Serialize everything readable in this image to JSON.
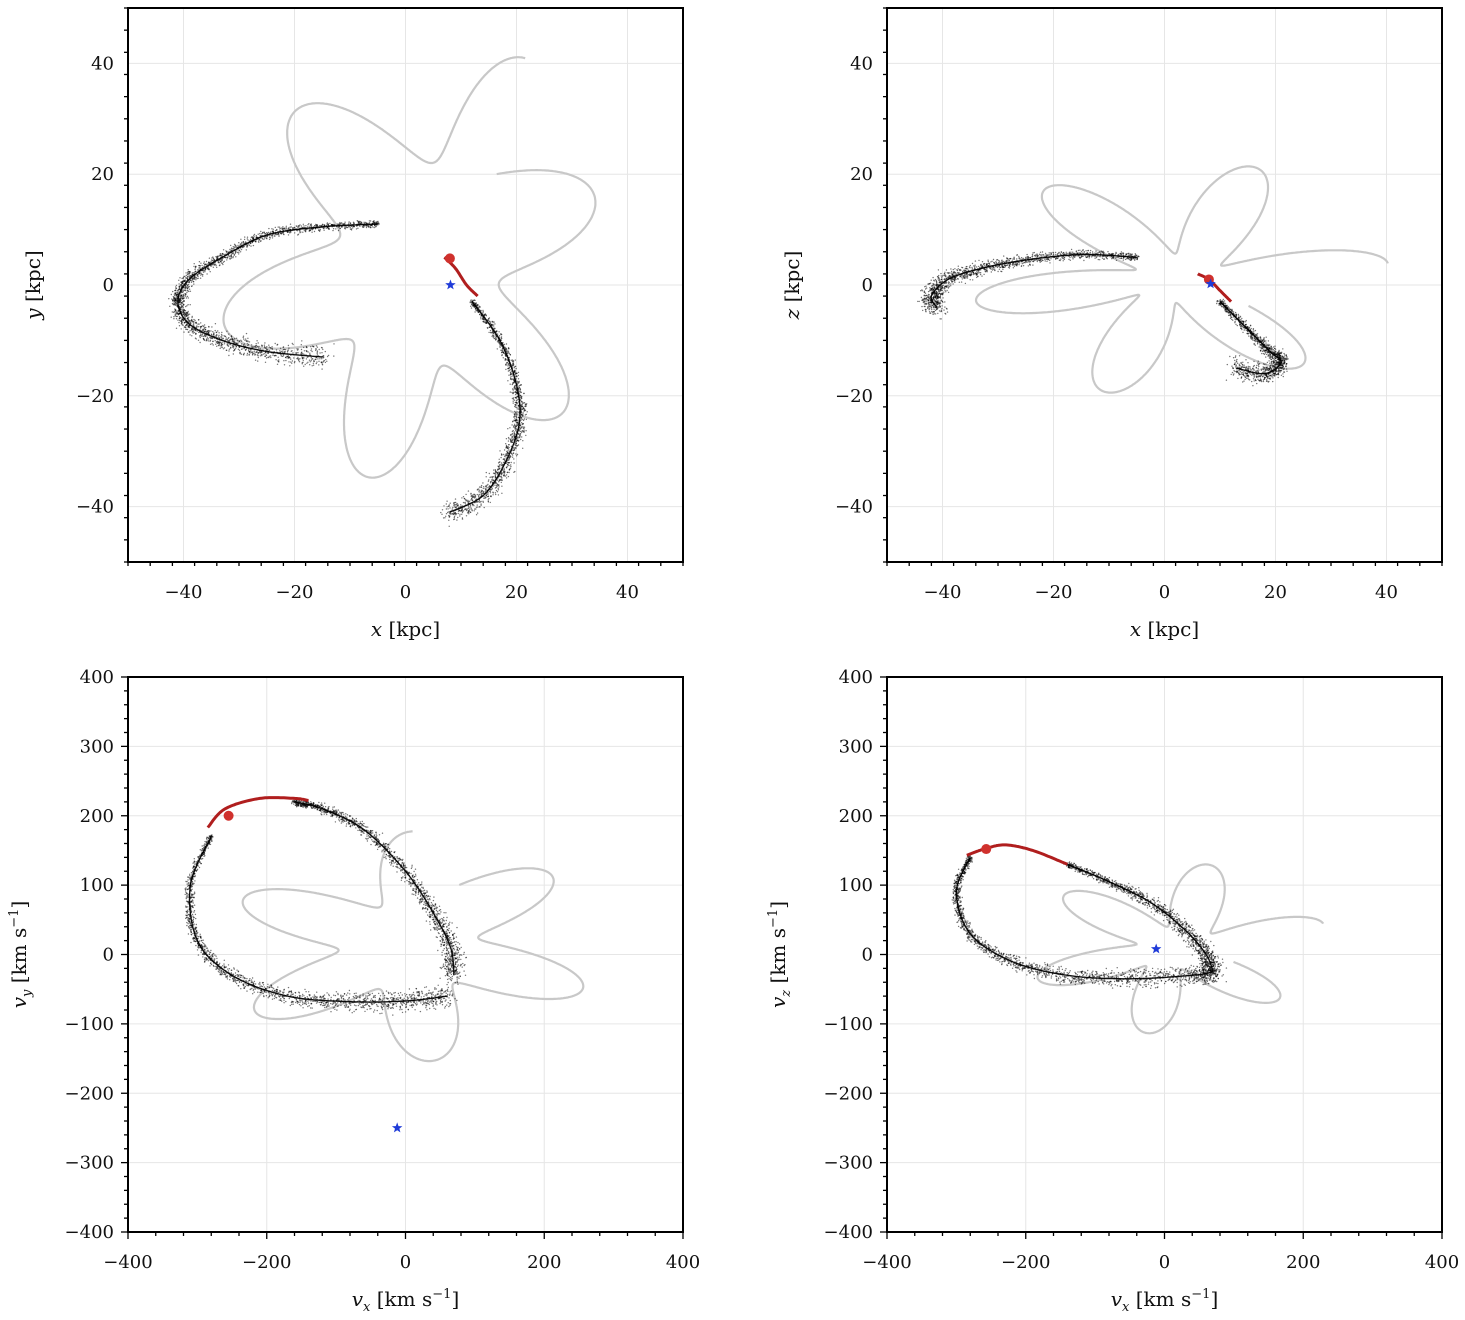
{
  "chart_data": [
    {
      "id": "xy",
      "type": "line",
      "xlabel": {
        "var": "x",
        "sub": "",
        "unit": " [kpc]",
        "sup": ""
      },
      "ylabel": {
        "var": "y",
        "sub": "",
        "unit": " [kpc]",
        "sup": ""
      },
      "xlim": [
        -50,
        50
      ],
      "ylim": [
        -50,
        50
      ],
      "xticks": [
        -40,
        -20,
        0,
        20,
        40
      ],
      "yticks": [
        -40,
        -20,
        0,
        20,
        40
      ],
      "xticklabels": [
        "−40",
        "−20",
        "0",
        "20",
        "40"
      ],
      "yticklabels": [
        "−40",
        "−20",
        "0",
        "20",
        "40"
      ],
      "minor": 5,
      "rosette": {
        "name": "orbit",
        "color": "#c8c8c8",
        "petals": 5,
        "lobe_long": 44,
        "lobe_short": 22,
        "offset": 12,
        "start_deg": 75
      },
      "stream": [
        [
          -5,
          11
        ],
        [
          -15,
          10.5
        ],
        [
          -25,
          9
        ],
        [
          -33,
          5
        ],
        [
          -39,
          1
        ],
        [
          -41,
          -3
        ],
        [
          -39,
          -7
        ],
        [
          -33,
          -10
        ],
        [
          -25,
          -12
        ],
        [
          -15,
          -13
        ]
      ],
      "stream2": [
        [
          12,
          -3
        ],
        [
          17,
          -10
        ],
        [
          20,
          -18
        ],
        [
          20.5,
          -25
        ],
        [
          18,
          -32
        ],
        [
          14,
          -38
        ],
        [
          8,
          -41
        ]
      ],
      "red_track": [
        [
          7,
          5
        ],
        [
          9,
          3
        ],
        [
          11,
          0
        ],
        [
          13,
          -2
        ]
      ],
      "progenitor": {
        "x": 8,
        "y": 4.8,
        "color": "#d0312d"
      },
      "sun": {
        "x": 8.1,
        "y": 0,
        "color": "#1f3bd8"
      }
    },
    {
      "id": "xz",
      "type": "line",
      "xlabel": {
        "var": "x",
        "sub": "",
        "unit": " [kpc]",
        "sup": ""
      },
      "ylabel": {
        "var": "z",
        "sub": "",
        "unit": " [kpc]",
        "sup": ""
      },
      "xlim": [
        -50,
        50
      ],
      "ylim": [
        -50,
        50
      ],
      "xticks": [
        -40,
        -20,
        0,
        20,
        40
      ],
      "yticks": [
        -40,
        -20,
        0,
        20,
        40
      ],
      "xticklabels": [
        "−40",
        "−20",
        "0",
        "20",
        "40"
      ],
      "yticklabels": [
        "−40",
        "−20",
        "0",
        "20",
        "40"
      ],
      "minor": 5,
      "rosette": {
        "name": "orbit",
        "color": "#c8c8c8",
        "petals": 5,
        "lobe_long": 40,
        "lobe_short": 9,
        "offset": 4,
        "start_deg": 10
      },
      "stream": [
        [
          -5,
          5
        ],
        [
          -15,
          5.5
        ],
        [
          -25,
          4.5
        ],
        [
          -33,
          3
        ],
        [
          -39,
          1
        ],
        [
          -42,
          -2
        ],
        [
          -41,
          -4
        ]
      ],
      "stream2": [
        [
          10,
          -3
        ],
        [
          15,
          -8
        ],
        [
          19,
          -12
        ],
        [
          21,
          -14
        ],
        [
          18,
          -16
        ],
        [
          13,
          -15
        ]
      ],
      "red_track": [
        [
          6,
          2
        ],
        [
          8,
          1
        ],
        [
          10,
          -1
        ],
        [
          12,
          -3
        ]
      ],
      "progenitor": {
        "x": 8,
        "y": 1,
        "color": "#d0312d"
      },
      "sun": {
        "x": 8.3,
        "y": 0.2,
        "color": "#1f3bd8"
      }
    },
    {
      "id": "vxvy",
      "type": "line",
      "xlabel": {
        "var": "v",
        "sub": "x",
        "unit": " [km s",
        "sup": "−1",
        "close": "]"
      },
      "ylabel": {
        "var": "v",
        "sub": "y",
        "unit": " [km s",
        "sup": "−1",
        "close": "]"
      },
      "xlim": [
        -400,
        400
      ],
      "ylim": [
        -400,
        400
      ],
      "xticks": [
        -400,
        -200,
        0,
        200,
        400
      ],
      "yticks": [
        -400,
        -300,
        -200,
        -100,
        0,
        100,
        200,
        300,
        400
      ],
      "xticklabels": [
        "−400",
        "−200",
        "0",
        "200",
        "400"
      ],
      "yticklabels": [
        "−400",
        "−300",
        "−200",
        "−100",
        "0",
        "100",
        "200",
        "300",
        "400"
      ],
      "minor": 5,
      "rosette": {
        "name": "orbit",
        "color": "#c8c8c8",
        "petals": 5,
        "lobe_long": 310,
        "lobe_short": 130,
        "offset": 40,
        "start_deg": 95
      },
      "stream": [
        [
          -160,
          220
        ],
        [
          -120,
          210
        ],
        [
          -60,
          180
        ],
        [
          0,
          120
        ],
        [
          40,
          60
        ],
        [
          65,
          10
        ],
        [
          70,
          -30
        ]
      ],
      "stream2": [
        [
          -280,
          170
        ],
        [
          -310,
          100
        ],
        [
          -300,
          20
        ],
        [
          -250,
          -30
        ],
        [
          -170,
          -60
        ],
        [
          -80,
          -68
        ],
        [
          0,
          -67
        ],
        [
          60,
          -60
        ]
      ],
      "red_track": [
        [
          -285,
          183
        ],
        [
          -260,
          210
        ],
        [
          -210,
          225
        ],
        [
          -160,
          225
        ],
        [
          -140,
          222
        ]
      ],
      "progenitor": {
        "x": -255,
        "y": 200,
        "color": "#d0312d"
      },
      "sun": {
        "x": -12,
        "y": -250,
        "color": "#1f3bd8"
      }
    },
    {
      "id": "vxvz",
      "type": "line",
      "xlabel": {
        "var": "v",
        "sub": "x",
        "unit": " [km s",
        "sup": "−1",
        "close": "]"
      },
      "ylabel": {
        "var": "v",
        "sub": "z",
        "unit": " [km s",
        "sup": "−1",
        "close": "]"
      },
      "xlim": [
        -400,
        400
      ],
      "ylim": [
        -400,
        400
      ],
      "xticks": [
        -400,
        -200,
        0,
        200,
        400
      ],
      "yticks": [
        -400,
        -300,
        -200,
        -100,
        0,
        100,
        200,
        300,
        400
      ],
      "xticklabels": [
        "−400",
        "−200",
        "0",
        "200",
        "400"
      ],
      "yticklabels": [
        "−400",
        "−300",
        "−200",
        "−100",
        "0",
        "100",
        "200",
        "300",
        "400"
      ],
      "minor": 5,
      "rosette": {
        "name": "orbit",
        "color": "#c8c8c8",
        "petals": 5,
        "lobe_long": 230,
        "lobe_short": 65,
        "offset": 30,
        "start_deg": 20
      },
      "stream": [
        [
          -140,
          130
        ],
        [
          -80,
          105
        ],
        [
          -20,
          75
        ],
        [
          30,
          35
        ],
        [
          60,
          0
        ],
        [
          70,
          -25
        ]
      ],
      "stream2": [
        [
          -280,
          140
        ],
        [
          -300,
          90
        ],
        [
          -280,
          30
        ],
        [
          -220,
          -10
        ],
        [
          -140,
          -30
        ],
        [
          -50,
          -35
        ],
        [
          40,
          -30
        ],
        [
          70,
          -25
        ]
      ],
      "red_track": [
        [
          -285,
          143
        ],
        [
          -260,
          152
        ],
        [
          -230,
          158
        ],
        [
          -190,
          150
        ],
        [
          -140,
          130
        ]
      ],
      "progenitor": {
        "x": -257,
        "y": 152,
        "color": "#d0312d"
      },
      "sun": {
        "x": -12,
        "y": 8,
        "color": "#1f3bd8"
      }
    }
  ]
}
